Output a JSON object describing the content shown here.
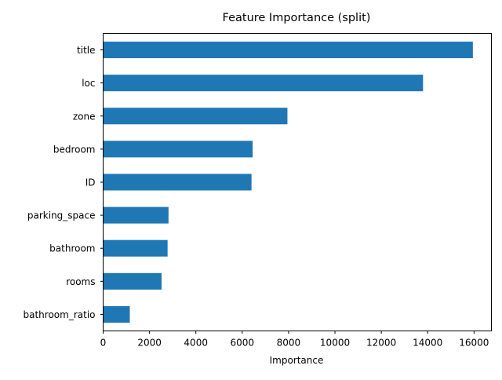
{
  "chart_data": {
    "type": "bar",
    "orientation": "horizontal",
    "title": "Feature Importance (split)",
    "xlabel": "Importance",
    "ylabel": "",
    "categories": [
      "title",
      "loc",
      "zone",
      "bedroom",
      "ID",
      "parking_space",
      "bathroom",
      "rooms",
      "bathroom_ratio"
    ],
    "values": [
      15950,
      13800,
      7950,
      6450,
      6400,
      2820,
      2780,
      2520,
      1150
    ],
    "xlim": [
      0,
      16750
    ],
    "xticks": [
      0,
      2000,
      4000,
      6000,
      8000,
      10000,
      12000,
      14000,
      16000
    ],
    "grid": false,
    "legend": "none",
    "bar_color": "#1f77b4"
  }
}
